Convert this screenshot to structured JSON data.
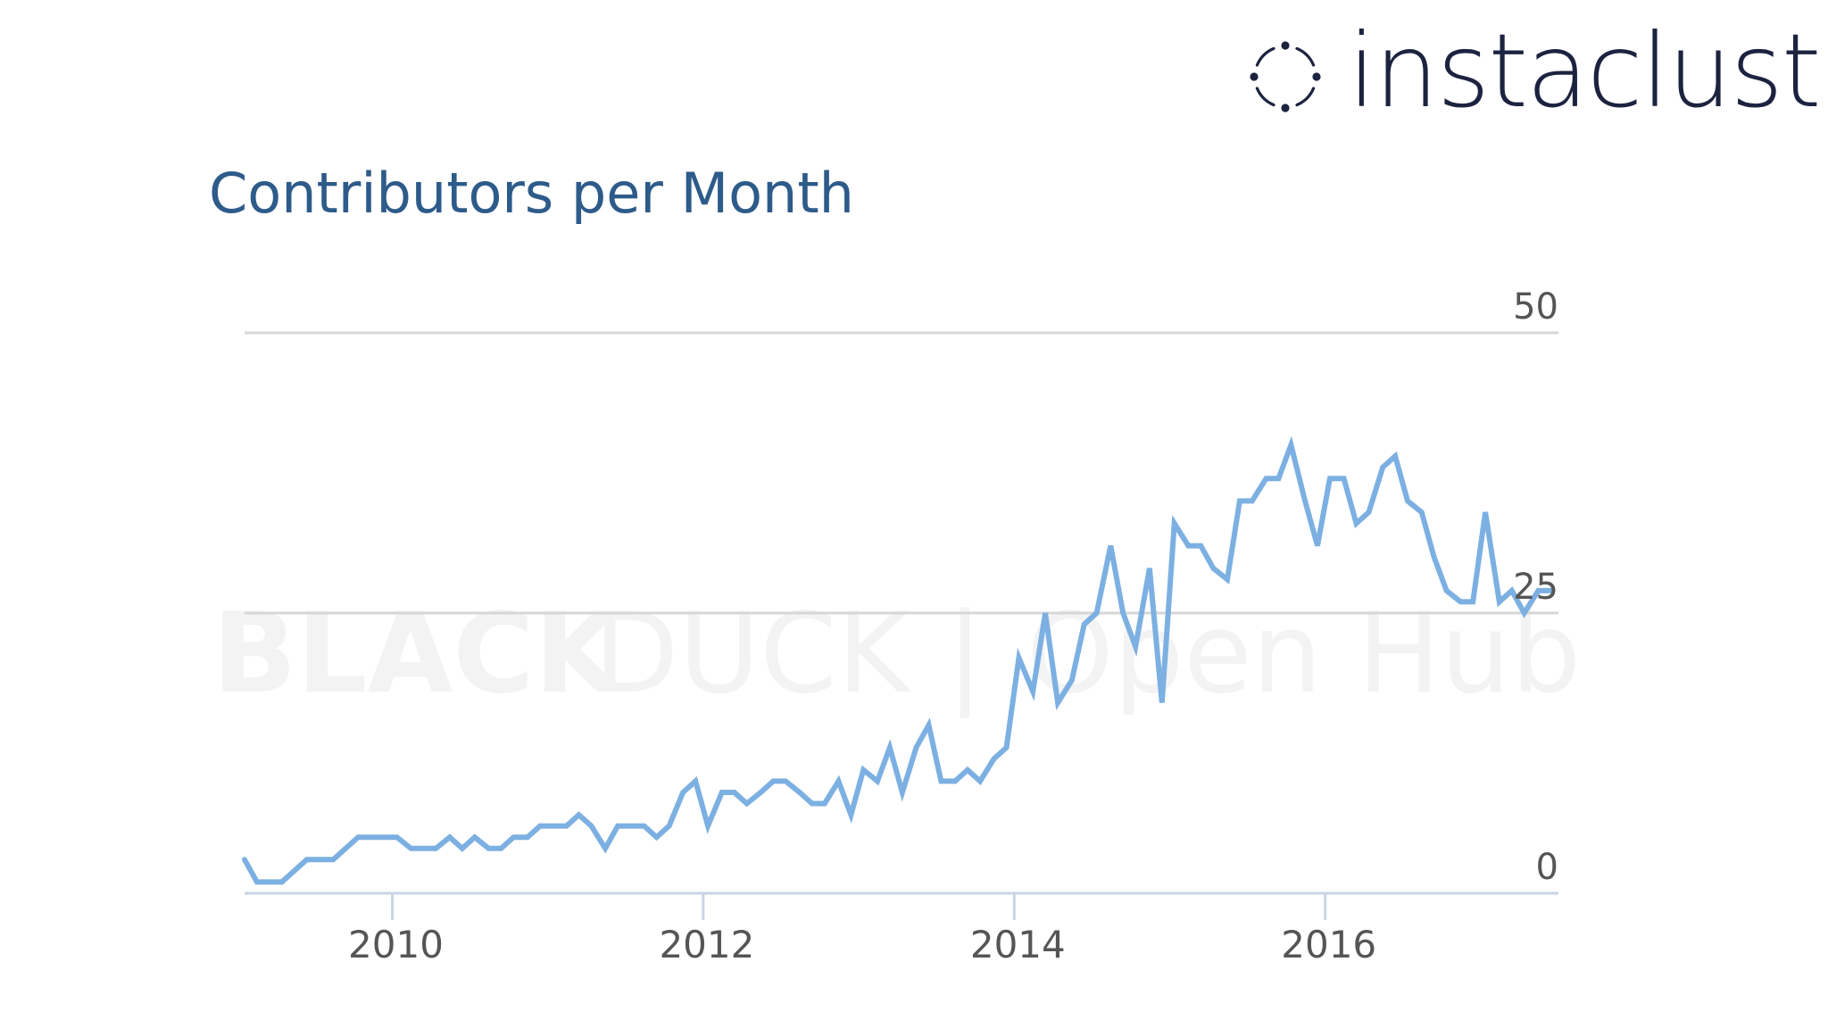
{
  "logo": {
    "text": "instaclustr",
    "icon": "dotted-ring-icon",
    "color": "#1c2340"
  },
  "watermark": {
    "bold": "BLACK",
    "light": "DUCK",
    "divider": "|",
    "product": "Open Hub"
  },
  "chart_data": {
    "type": "line",
    "title": "Contributors per Month",
    "xlabel": "",
    "ylabel": "",
    "xlim": [
      2009.05,
      2017.5
    ],
    "ylim": [
      0,
      50
    ],
    "x_ticks": [
      "2010",
      "2012",
      "2014",
      "2016"
    ],
    "y_ticks": [
      "0",
      "25",
      "50"
    ],
    "y_axis_side": "right",
    "grid": true,
    "line_color": "#7cb0e2",
    "series": [
      {
        "name": "",
        "x": [
          2009.05,
          2009.13,
          2009.21,
          2009.29,
          2009.37,
          2009.45,
          2009.54,
          2009.62,
          2009.7,
          2009.78,
          2009.87,
          2009.95,
          2010.03,
          2010.12,
          2010.2,
          2010.28,
          2010.37,
          2010.45,
          2010.53,
          2010.62,
          2010.7,
          2010.78,
          2010.87,
          2010.95,
          2011.03,
          2011.12,
          2011.2,
          2011.28,
          2011.37,
          2011.45,
          2011.53,
          2011.62,
          2011.7,
          2011.78,
          2011.87,
          2011.95,
          2012.03,
          2012.12,
          2012.2,
          2012.28,
          2012.37,
          2012.45,
          2012.53,
          2012.62,
          2012.7,
          2012.78,
          2012.87,
          2012.95,
          2013.03,
          2013.12,
          2013.2,
          2013.28,
          2013.37,
          2013.45,
          2013.53,
          2013.62,
          2013.7,
          2013.78,
          2013.87,
          2013.95,
          2014.03,
          2014.12,
          2014.2,
          2014.28,
          2014.37,
          2014.45,
          2014.53,
          2014.62,
          2014.7,
          2014.78,
          2014.87,
          2014.95,
          2015.03,
          2015.12,
          2015.2,
          2015.28,
          2015.37,
          2015.45,
          2015.53,
          2015.62,
          2015.7,
          2015.78,
          2015.87,
          2015.95,
          2016.03,
          2016.12,
          2016.2,
          2016.28,
          2016.37,
          2016.45,
          2016.53,
          2016.62,
          2016.7,
          2016.78,
          2016.87,
          2016.95,
          2017.03,
          2017.12,
          2017.2,
          2017.28,
          2017.37,
          2017.45
        ],
        "values": [
          3,
          1,
          1,
          1,
          2,
          3,
          3,
          3,
          4,
          5,
          5,
          5,
          5,
          4,
          4,
          4,
          5,
          4,
          5,
          4,
          4,
          5,
          5,
          6,
          6,
          6,
          7,
          6,
          4,
          6,
          6,
          6,
          5,
          6,
          9,
          10,
          6,
          9,
          9,
          8,
          9,
          10,
          10,
          9,
          8,
          8,
          10,
          7,
          11,
          10,
          13,
          9,
          13,
          15,
          10,
          10,
          11,
          10,
          12,
          13,
          21,
          18,
          25,
          17,
          19,
          24,
          25,
          31,
          25,
          22,
          29,
          17,
          33,
          31,
          31,
          29,
          28,
          35,
          35,
          37,
          37,
          40,
          35,
          31,
          37,
          37,
          33,
          34,
          38,
          39,
          35,
          34,
          30,
          27,
          26,
          26,
          34,
          26,
          27,
          25,
          27,
          27
        ]
      }
    ]
  }
}
